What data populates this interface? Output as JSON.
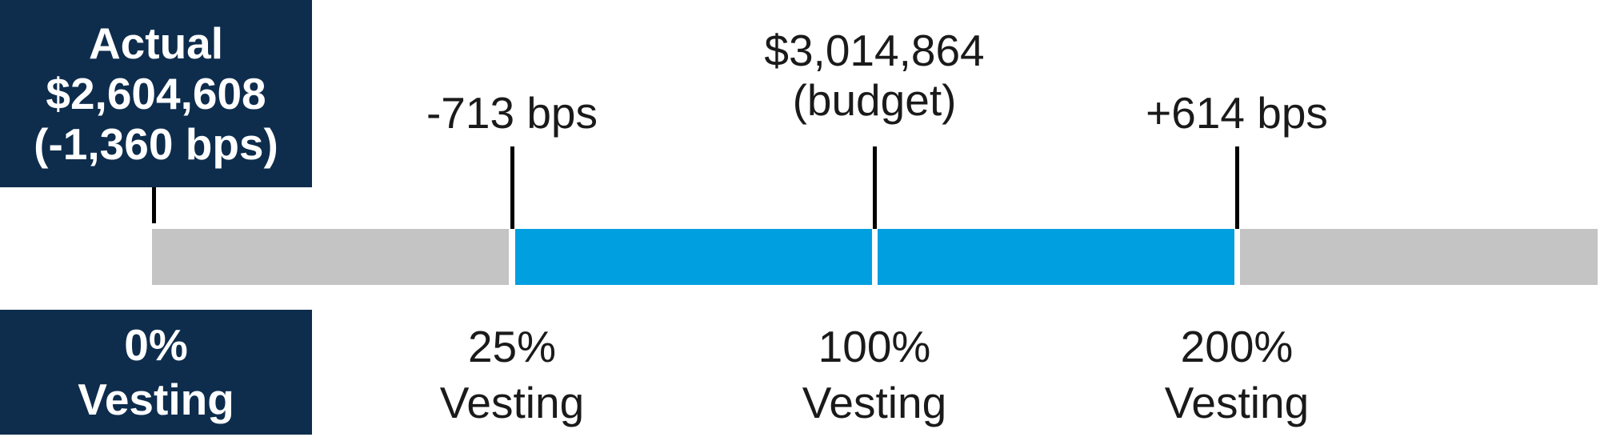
{
  "actual": {
    "title": "Actual",
    "amount": "$2,604,608",
    "delta": "(-1,360 bps)"
  },
  "zero_vesting": {
    "pct": "0%",
    "label": "Vesting"
  },
  "markers": {
    "low": {
      "bps": "-713 bps",
      "pct": "25%",
      "label": "Vesting"
    },
    "budget": {
      "amount": "$3,014,864",
      "note": "(budget)",
      "pct": "100%",
      "label": "Vesting"
    },
    "high": {
      "bps": "+614 bps",
      "pct": "200%",
      "label": "Vesting"
    }
  },
  "colors": {
    "box": "#0e2d4d",
    "range_fill": "#009fdf",
    "outside_fill": "#c4c4c4",
    "tick": "#000000"
  }
}
